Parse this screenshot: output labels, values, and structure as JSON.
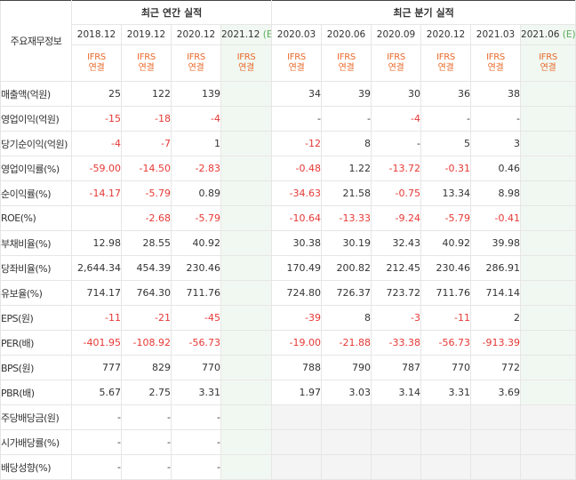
{
  "header": {
    "corner": "주요재무정보",
    "annual_group": "최근 연간 실적",
    "quarter_group": "최근 분기 실적",
    "annual_dates": [
      "2018.12",
      "2019.12",
      "2020.12",
      "2021.12"
    ],
    "annual_est_marker": "(E)",
    "quarter_dates": [
      "2020.03",
      "2020.06",
      "2020.09",
      "2020.12",
      "2021.03",
      "2021.06"
    ],
    "quarter_est_marker": "(E)",
    "ifrs_line1": "IFRS",
    "ifrs_line2": "연결"
  },
  "rows": [
    {
      "label": "매출액(억원)",
      "values": [
        "25",
        "122",
        "139",
        "",
        "34",
        "39",
        "30",
        "36",
        "38",
        ""
      ]
    },
    {
      "label": "영업이익(억원)",
      "values": [
        "-15",
        "-18",
        "-4",
        "",
        "-",
        "-",
        "-4",
        "-",
        "-",
        ""
      ]
    },
    {
      "label": "당기순이익(억원)",
      "values": [
        "-4",
        "-7",
        "1",
        "",
        "-12",
        "8",
        "-",
        "5",
        "3",
        ""
      ]
    },
    {
      "label": "영업이익률(%)",
      "values": [
        "-59.00",
        "-14.50",
        "-2.83",
        "",
        "-0.48",
        "1.22",
        "-13.72",
        "-0.31",
        "0.46",
        ""
      ]
    },
    {
      "label": "순이익률(%)",
      "values": [
        "-14.17",
        "-5.79",
        "0.89",
        "",
        "-34.63",
        "21.58",
        "-0.75",
        "13.34",
        "8.98",
        ""
      ]
    },
    {
      "label": "ROE(%)",
      "values": [
        "",
        "-2.68",
        "-5.79",
        "",
        "-10.64",
        "-13.33",
        "-9.24",
        "-5.79",
        "-0.41",
        ""
      ]
    },
    {
      "label": "부채비율(%)",
      "values": [
        "12.98",
        "28.55",
        "40.92",
        "",
        "30.38",
        "30.19",
        "32.43",
        "40.92",
        "39.98",
        ""
      ]
    },
    {
      "label": "당좌비율(%)",
      "values": [
        "2,644.34",
        "454.39",
        "230.46",
        "",
        "170.49",
        "200.82",
        "212.45",
        "230.46",
        "286.91",
        ""
      ]
    },
    {
      "label": "유보율(%)",
      "values": [
        "714.17",
        "764.30",
        "711.76",
        "",
        "724.80",
        "726.37",
        "723.72",
        "711.76",
        "714.14",
        ""
      ]
    },
    {
      "label": "EPS(원)",
      "values": [
        "-11",
        "-21",
        "-45",
        "",
        "-39",
        "8",
        "-3",
        "-11",
        "2",
        ""
      ]
    },
    {
      "label": "PER(배)",
      "values": [
        "-401.95",
        "-108.92",
        "-56.73",
        "",
        "-19.00",
        "-21.88",
        "-33.38",
        "-56.73",
        "-913.39",
        ""
      ]
    },
    {
      "label": "BPS(원)",
      "values": [
        "777",
        "829",
        "770",
        "",
        "788",
        "790",
        "787",
        "770",
        "772",
        ""
      ]
    },
    {
      "label": "PBR(배)",
      "values": [
        "5.67",
        "2.75",
        "3.31",
        "",
        "1.97",
        "3.03",
        "3.14",
        "3.31",
        "3.69",
        ""
      ]
    },
    {
      "label": "주당배당금(원)",
      "values": [
        "-",
        "-",
        "-",
        "",
        "",
        "",
        "",
        "",
        "",
        ""
      ]
    },
    {
      "label": "시가배당률(%)",
      "values": [
        "-",
        "-",
        "-",
        "",
        "",
        "",
        "",
        "",
        "",
        ""
      ]
    },
    {
      "label": "배당성향(%)",
      "values": [
        "-",
        "-",
        "-",
        "",
        "",
        "",
        "",
        "",
        "",
        ""
      ]
    }
  ],
  "colors": {
    "negative": "#e53935",
    "ifrs": "#e86a2b",
    "estimate_bg": "#f1f8f1",
    "estimate_marker": "#5aaa5a"
  }
}
